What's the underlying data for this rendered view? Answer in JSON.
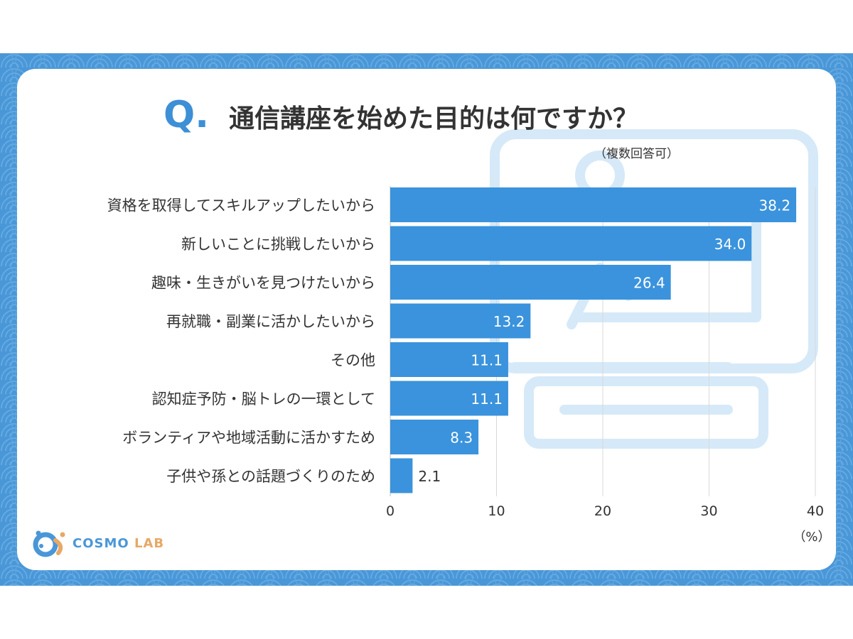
{
  "question": {
    "mark": "Q",
    "dot": ".",
    "title": "通信講座を始めた目的は何ですか？",
    "note": "（複数回答可）"
  },
  "brand": {
    "name_primary": "COSMO",
    "name_secondary": "LAB"
  },
  "colors": {
    "bar": "#3a93dc",
    "accent": "#3d8fd6",
    "background_band": "#4a97d8",
    "watermark": "#d6e9f8",
    "grid": "#d9d9d9"
  },
  "icons": [
    "computer-monitor-icon",
    "cosmo-lab-logo-icon"
  ],
  "chart_data": {
    "type": "bar",
    "orientation": "horizontal",
    "categories": [
      "資格を取得してスキルアップしたいから",
      "新しいことに挑戦したいから",
      "趣味・生きがいを見つけたいから",
      "再就職・副業に活かしたいから",
      "その他",
      "認知症予防・脳トレの一環として",
      "ボランティアや地域活動に活かすため",
      "子供や孫との話題づくりのため"
    ],
    "values": [
      38.2,
      34.0,
      26.4,
      13.2,
      11.1,
      11.1,
      8.3,
      2.1
    ],
    "value_labels": [
      "38.2",
      "34.0",
      "26.4",
      "13.2",
      "11.1",
      "11.1",
      "8.3",
      "2.1"
    ],
    "xlim": [
      0,
      40
    ],
    "xticks": [
      "0",
      "10",
      "20",
      "30",
      "40"
    ],
    "unit": "（%）",
    "grid": true
  }
}
